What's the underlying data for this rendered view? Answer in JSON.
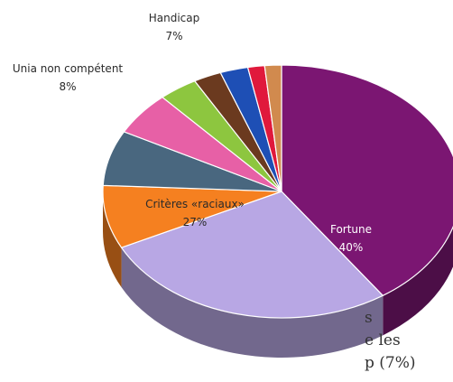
{
  "chart_data": {
    "type": "pie",
    "title": "",
    "start_angle_deg": -90,
    "slices": [
      {
        "label": "Fortune",
        "value": 40,
        "value_label": "40%",
        "color": "#7b1672",
        "label_color": "light"
      },
      {
        "label": "Critères «raciaux»",
        "value": 27,
        "value_label": "27%",
        "color": "#b8a7e4",
        "label_color": "dark"
      },
      {
        "label": "Unia non compétent",
        "value": 8,
        "value_label": "8%",
        "color": "#f58020",
        "label_color": "dark"
      },
      {
        "label": "Handicap",
        "value": 7,
        "value_label": "7%",
        "color": "#49677f",
        "label_color": "dark"
      },
      {
        "label": "",
        "value": 5.5,
        "value_label": "",
        "color": "#e760a6",
        "label_color": "dark"
      },
      {
        "label": "",
        "value": 3.5,
        "value_label": "",
        "color": "#8dc63f",
        "label_color": "dark"
      },
      {
        "label": "",
        "value": 2.5,
        "value_label": "",
        "color": "#6b3a1f",
        "label_color": "dark"
      },
      {
        "label": "",
        "value": 2.5,
        "value_label": "",
        "color": "#1e4fb5",
        "label_color": "dark"
      },
      {
        "label": "",
        "value": 1.5,
        "value_label": "",
        "color": "#e0193c",
        "label_color": "dark"
      },
      {
        "label": "",
        "value": 1.5,
        "value_label": "",
        "color": "#d18a4e",
        "label_color": "dark"
      }
    ]
  },
  "background_text": "s\ne les\np (7%)"
}
